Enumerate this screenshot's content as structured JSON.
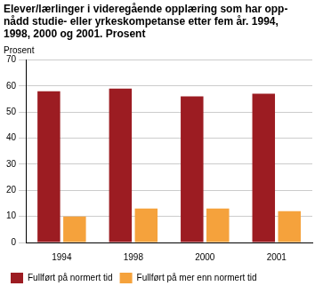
{
  "chart_data": {
    "type": "bar",
    "title": [
      "Elever/lærlinger i videregående opplæring som har opp-",
      "nådd studie- eller yrkeskompetanse etter fem år. 1994,",
      "1998, 2000 og 2001. Prosent"
    ],
    "ylabel": "Prosent",
    "categories": [
      "1994",
      "1998",
      "2000",
      "2001"
    ],
    "series": [
      {
        "name": "Fullført på normert tid",
        "color": "#9c1c22",
        "values": [
          58,
          59,
          56,
          57
        ]
      },
      {
        "name": "Fullført på mer enn normert tid",
        "color": "#f5a23c",
        "values": [
          10,
          13,
          13,
          12
        ]
      }
    ],
    "ylim": [
      0,
      70
    ],
    "yticks": [
      0,
      10,
      20,
      30,
      40,
      50,
      60,
      70
    ],
    "grid": true,
    "legend": "bottom"
  }
}
